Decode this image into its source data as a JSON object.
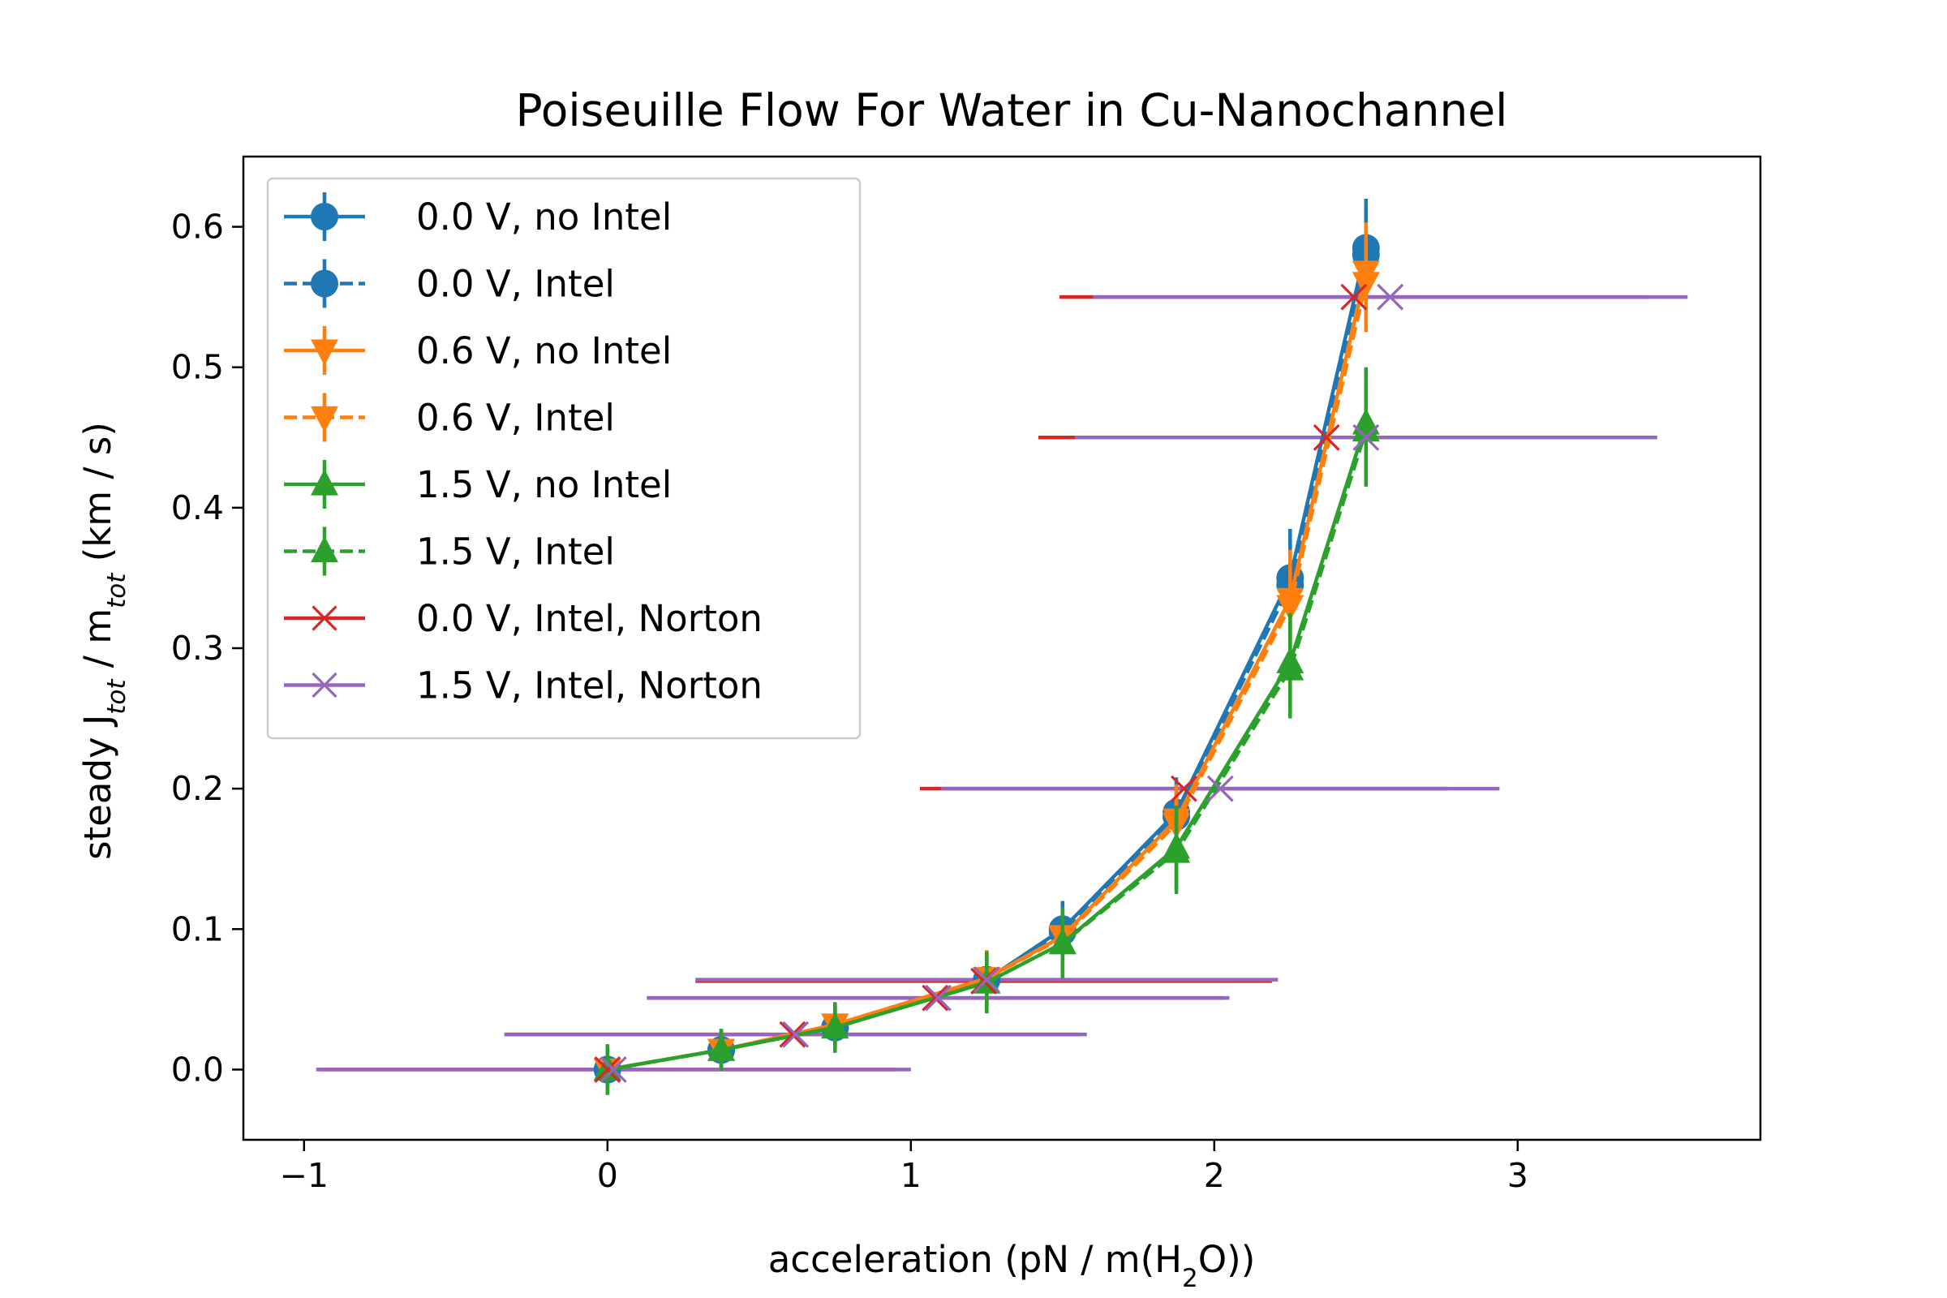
{
  "chart_data": {
    "type": "line",
    "title": "Poiseuille Flow For Water in Cu-Nanochannel",
    "xlabel": {
      "main": "acceleration  (pN / m(H",
      "sub": "2",
      "end": "O))"
    },
    "ylabel": {
      "p1": "steady J",
      "s1": "tot",
      "p2": " / m",
      "s2": "tot",
      "p3": " (km / s)"
    },
    "xlim": [
      -1.2,
      3.8
    ],
    "ylim": [
      -0.05,
      0.65
    ],
    "xticks": [
      -1,
      0,
      1,
      2,
      3
    ],
    "xtick_labels": [
      "−1",
      "0",
      "1",
      "2",
      "3"
    ],
    "yticks": [
      0.0,
      0.1,
      0.2,
      0.3,
      0.4,
      0.5,
      0.6
    ],
    "ytick_labels": [
      "0.0",
      "0.1",
      "0.2",
      "0.3",
      "0.4",
      "0.5",
      "0.6"
    ],
    "grid": false,
    "legend_position": "top-left",
    "x": [
      0,
      0.375,
      0.75,
      1.25,
      1.5,
      1.875,
      2.25,
      2.5
    ],
    "series": [
      {
        "name": "0.0 V, no Intel",
        "color": "#1f77b4",
        "marker": "circle",
        "linestyle": "solid",
        "y": [
          0,
          0.014,
          0.03,
          0.064,
          0.1,
          0.183,
          0.35,
          0.585
        ],
        "yerr": [
          0.015,
          0.012,
          0.015,
          0.02,
          0.02,
          0.025,
          0.035,
          0.035
        ]
      },
      {
        "name": "0.0 V, Intel",
        "color": "#1f77b4",
        "marker": "circle",
        "linestyle": "dashed",
        "y": [
          0,
          0.014,
          0.03,
          0.064,
          0.098,
          0.18,
          0.345,
          0.58
        ],
        "yerr": [
          0.015,
          0.012,
          0.015,
          0.02,
          0.02,
          0.025,
          0.035,
          0.035
        ]
      },
      {
        "name": "0.6 V, no Intel",
        "color": "#ff7f0e",
        "marker": "triangle-down",
        "linestyle": "solid",
        "y": [
          0,
          0.014,
          0.032,
          0.065,
          0.095,
          0.178,
          0.335,
          0.568
        ],
        "yerr": [
          0.015,
          0.012,
          0.015,
          0.02,
          0.02,
          0.025,
          0.035,
          0.035
        ]
      },
      {
        "name": "0.6 V, Intel",
        "color": "#ff7f0e",
        "marker": "triangle-down",
        "linestyle": "dashed",
        "y": [
          0,
          0.014,
          0.032,
          0.065,
          0.094,
          0.175,
          0.33,
          0.56
        ],
        "yerr": [
          0.015,
          0.012,
          0.015,
          0.02,
          0.02,
          0.025,
          0.035,
          0.035
        ]
      },
      {
        "name": "1.5 V, no Intel",
        "color": "#2ca02c",
        "marker": "triangle-up",
        "linestyle": "solid",
        "y": [
          0,
          0.014,
          0.03,
          0.062,
          0.09,
          0.158,
          0.29,
          0.46
        ],
        "yerr": [
          0.018,
          0.015,
          0.018,
          0.022,
          0.025,
          0.03,
          0.035,
          0.04
        ]
      },
      {
        "name": "1.5 V, Intel",
        "color": "#2ca02c",
        "marker": "triangle-up",
        "linestyle": "dashed",
        "y": [
          0,
          0.014,
          0.03,
          0.062,
          0.09,
          0.155,
          0.285,
          0.455
        ],
        "yerr": [
          0.018,
          0.015,
          0.018,
          0.022,
          0.025,
          0.03,
          0.035,
          0.04
        ]
      }
    ],
    "norton_series": [
      {
        "name": "0.0 V, Intel, Norton",
        "color": "#d62728",
        "marker": "x",
        "points": [
          {
            "x": 0,
            "y": 0,
            "xerr": 0.95
          },
          {
            "x": 0.61,
            "y": 0.025,
            "xerr": 0.95
          },
          {
            "x": 1.08,
            "y": 0.051,
            "xerr": 0.95
          },
          {
            "x": 1.24,
            "y": 0.063,
            "xerr": 0.95
          },
          {
            "x": 1.9,
            "y": 0.2,
            "xerr": 0.87
          },
          {
            "x": 2.37,
            "y": 0.45,
            "xerr": 0.95
          },
          {
            "x": 2.46,
            "y": 0.55,
            "xerr": 0.97
          }
        ]
      },
      {
        "name": "1.5 V, Intel, Norton",
        "color": "#9467bd",
        "marker": "x",
        "points": [
          {
            "x": 0.02,
            "y": 0,
            "xerr": 0.98
          },
          {
            "x": 0.62,
            "y": 0.025,
            "xerr": 0.96
          },
          {
            "x": 1.09,
            "y": 0.051,
            "xerr": 0.96
          },
          {
            "x": 1.25,
            "y": 0.064,
            "xerr": 0.96
          },
          {
            "x": 2.02,
            "y": 0.2,
            "xerr": 0.92
          },
          {
            "x": 2.5,
            "y": 0.45,
            "xerr": 0.96
          },
          {
            "x": 2.58,
            "y": 0.55,
            "xerr": 0.98
          }
        ]
      }
    ]
  }
}
